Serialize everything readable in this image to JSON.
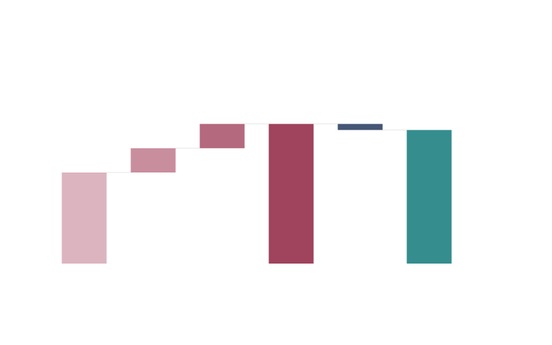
{
  "chart_data": {
    "type": "bar",
    "subtype": "waterfall",
    "categories": [
      "",
      "",
      "",
      "",
      "",
      ""
    ],
    "bars": [
      {
        "kind": "absolute",
        "start": 0,
        "end": 37.5,
        "color": "#dbb4bf"
      },
      {
        "kind": "delta",
        "start": 37.5,
        "end": 47.5,
        "color": "#c98e9e"
      },
      {
        "kind": "delta",
        "start": 47.5,
        "end": 57.5,
        "color": "#b4697e"
      },
      {
        "kind": "total",
        "start": 0,
        "end": 57.5,
        "color": "#a0435d"
      },
      {
        "kind": "delta",
        "start": 57.5,
        "end": 55,
        "color": "#445676"
      },
      {
        "kind": "total",
        "start": 0,
        "end": 55,
        "color": "#358d8d"
      }
    ],
    "ylim": [
      0,
      100
    ],
    "grid": false,
    "legend": "none",
    "connector_color": "#e6e6e6"
  }
}
